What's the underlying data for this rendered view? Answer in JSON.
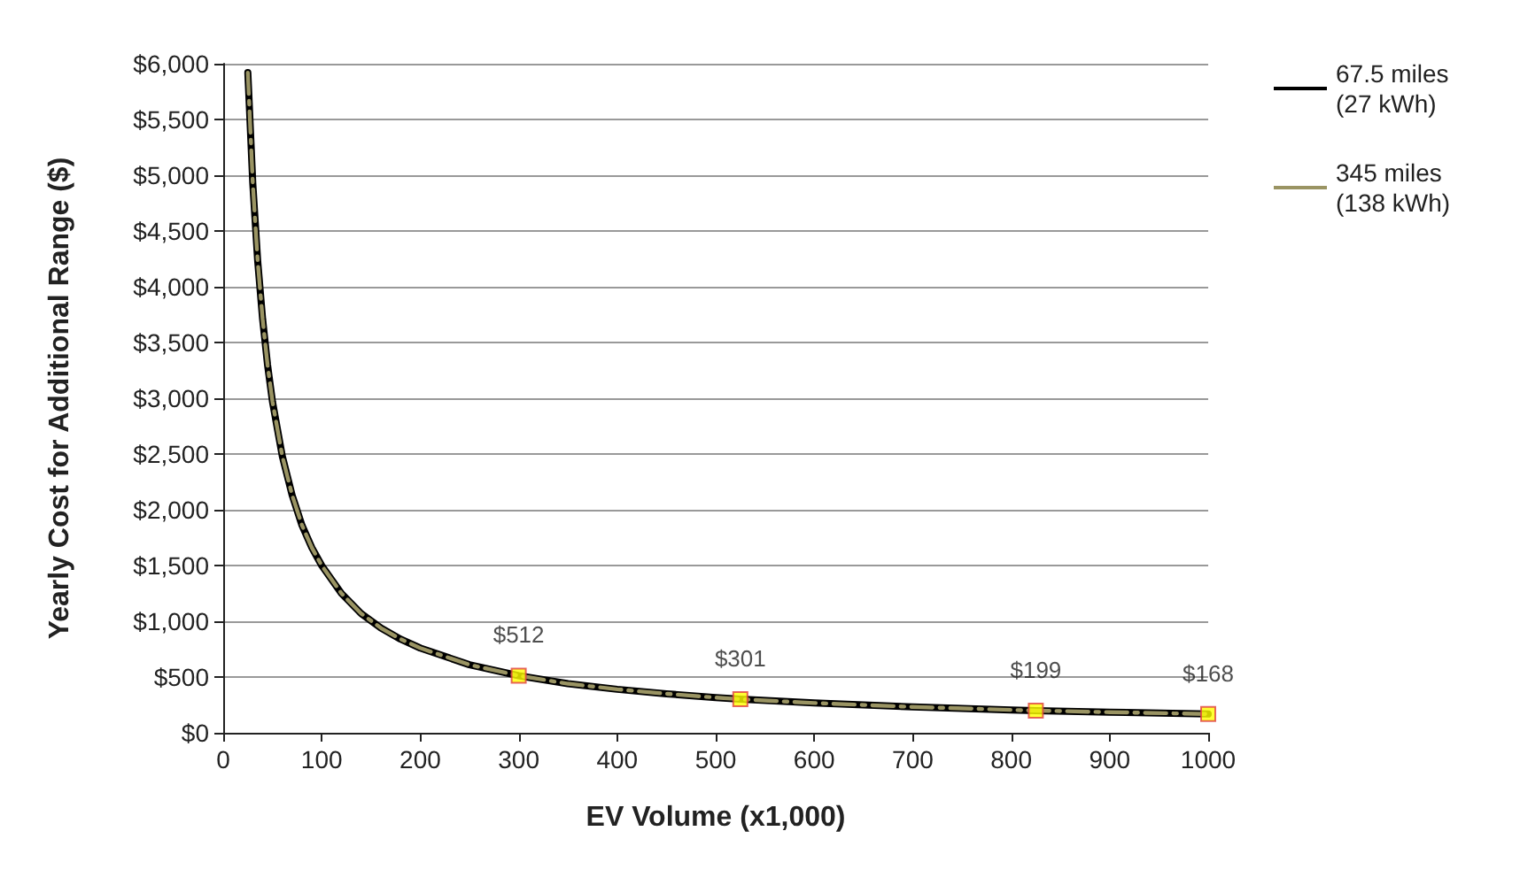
{
  "chart_data": {
    "type": "line",
    "xlabel": "EV Volume (x1,000)",
    "ylabel": "Yearly Cost for Additional Range ($)",
    "x": [
      25,
      30,
      35,
      40,
      45,
      50,
      60,
      70,
      80,
      90,
      100,
      120,
      140,
      160,
      180,
      200,
      250,
      300,
      350,
      400,
      450,
      500,
      525,
      600,
      700,
      800,
      825,
      900,
      1000
    ],
    "series": [
      {
        "name": "67.5 miles (27 kWh)",
        "color": "#000000",
        "line_style": "solid",
        "values": [
          5920,
          4930,
          4230,
          3710,
          3300,
          2970,
          2480,
          2130,
          1860,
          1660,
          1500,
          1250,
          1070,
          940,
          840,
          760,
          610,
          512,
          440,
          390,
          350,
          316,
          301,
          267,
          232,
          205,
          199,
          185,
          168
        ]
      },
      {
        "name": "345 miles (138 kWh)",
        "color": "#9a9463",
        "line_style": "dashed",
        "values": [
          5920,
          4930,
          4230,
          3710,
          3300,
          2970,
          2480,
          2130,
          1860,
          1660,
          1500,
          1250,
          1070,
          940,
          840,
          760,
          610,
          512,
          440,
          390,
          350,
          316,
          301,
          267,
          232,
          205,
          199,
          185,
          168
        ]
      },
      {
        "type": "scatter",
        "marker": "square",
        "color": "#ffff00",
        "x": [
          300,
          525,
          825,
          1000
        ],
        "values": [
          512,
          301,
          199,
          168
        ],
        "value_labels": [
          "$512",
          "$301",
          "$199",
          "$168"
        ]
      }
    ],
    "xlim": [
      0,
      1000
    ],
    "xticks": [
      0,
      100,
      200,
      300,
      400,
      500,
      600,
      700,
      800,
      900,
      1000
    ],
    "ylim": [
      0,
      6000
    ],
    "yticks": [
      {
        "value": 0,
        "label": "$0"
      },
      {
        "value": 500,
        "label": "$500"
      },
      {
        "value": 1000,
        "label": "$1,000"
      },
      {
        "value": 1500,
        "label": "$1,500"
      },
      {
        "value": 2000,
        "label": "$2,000"
      },
      {
        "value": 2500,
        "label": "$2,500"
      },
      {
        "value": 3000,
        "label": "$3,000"
      },
      {
        "value": 3500,
        "label": "$3,500"
      },
      {
        "value": 4000,
        "label": "$4,000"
      },
      {
        "value": 4500,
        "label": "$4,500"
      },
      {
        "value": 5000,
        "label": "$5,000"
      },
      {
        "value": 5500,
        "label": "$5,500"
      },
      {
        "value": 6000,
        "label": "$6,000"
      }
    ],
    "grid": "y",
    "legend": "top right",
    "marker": "none"
  }
}
